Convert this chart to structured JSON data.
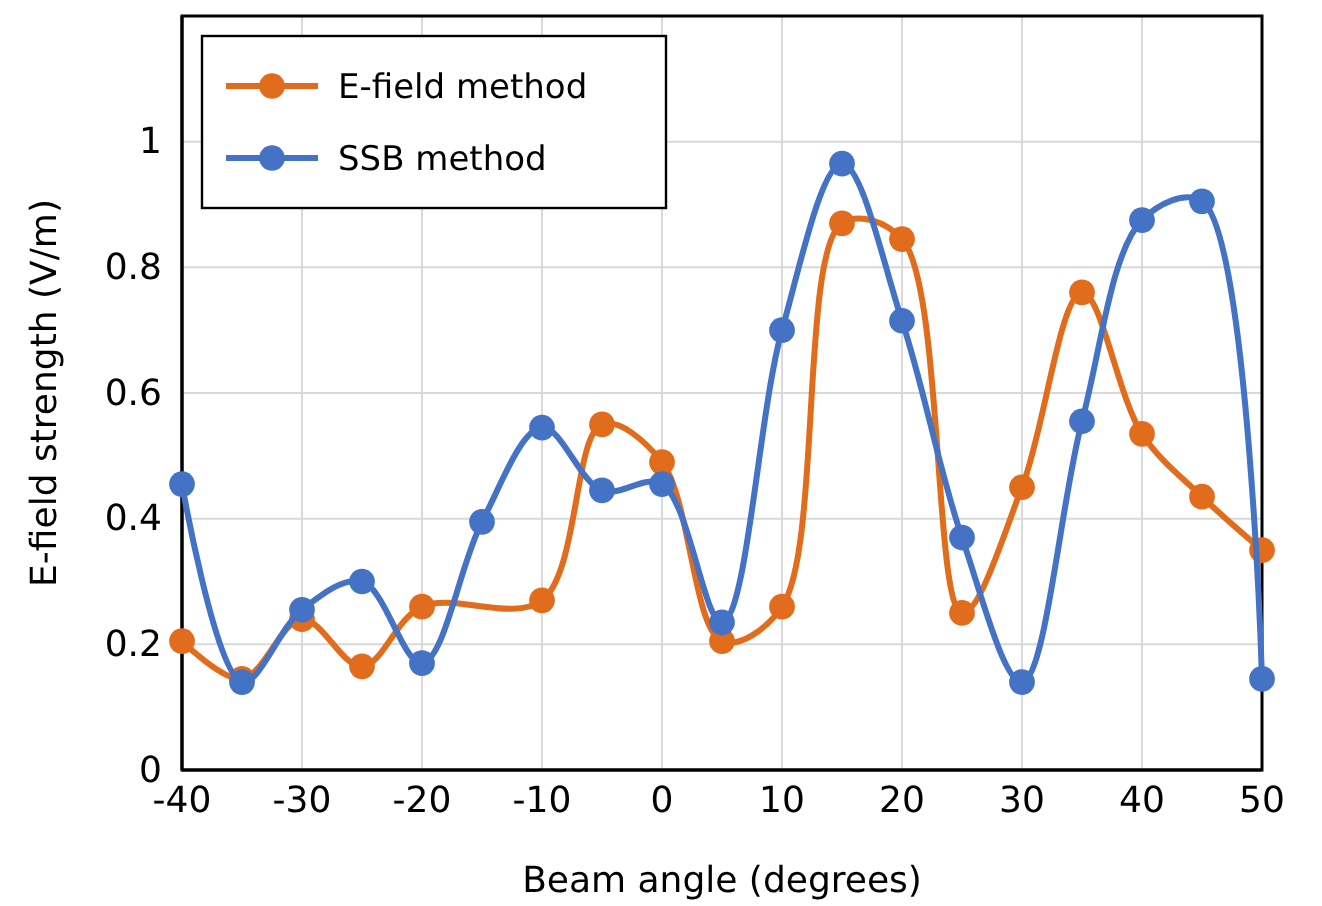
{
  "chart_data": {
    "type": "line",
    "xlabel": "Beam angle (degrees)",
    "ylabel": "E-field strength (V/m)",
    "xlim": [
      -40,
      50
    ],
    "xticks": [
      -40,
      -30,
      -20,
      -10,
      0,
      10,
      20,
      30,
      40,
      50
    ],
    "ylim": [
      0,
      1.2
    ],
    "yticks": [
      0,
      0.2,
      0.4,
      0.6,
      0.8,
      1,
      {
        "value": 1.2,
        "label": null
      }
    ],
    "grid": true,
    "legend": "top left",
    "marker": "circle",
    "line_style": "solid",
    "series": [
      {
        "name": "E-field method",
        "color": "#e06c1c",
        "x": [
          -40,
          -35,
          -30,
          -25,
          -20,
          -10,
          -5,
          0,
          5,
          10,
          15,
          20,
          25,
          30,
          35,
          40,
          45,
          50
        ],
        "values": [
          0.205,
          0.145,
          0.24,
          0.165,
          0.26,
          0.27,
          0.55,
          0.49,
          0.205,
          0.26,
          0.87,
          0.845,
          0.25,
          0.45,
          0.76,
          0.535,
          0.435,
          0.35
        ]
      },
      {
        "name": "SSB method",
        "color": "#4472c4",
        "x": [
          -40,
          -35,
          -30,
          -25,
          -20,
          -15,
          -10,
          -5,
          0,
          5,
          10,
          15,
          20,
          25,
          30,
          35,
          40,
          45,
          50
        ],
        "values": [
          0.455,
          0.14,
          0.255,
          0.3,
          0.17,
          0.395,
          0.545,
          0.445,
          0.455,
          0.235,
          0.7,
          0.965,
          0.715,
          0.37,
          0.14,
          0.555,
          0.875,
          0.905,
          0.145
        ]
      }
    ]
  }
}
